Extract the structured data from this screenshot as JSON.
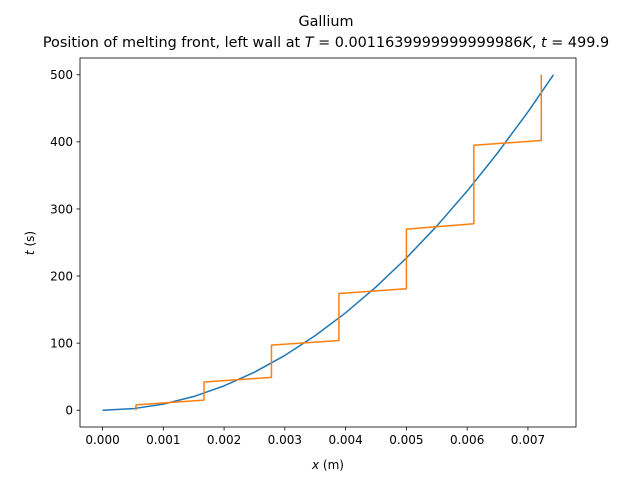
{
  "chart_data": {
    "type": "line",
    "title": "Gallium",
    "subtitle_parts": {
      "prefix": "Position of melting front, left wall at ",
      "T_var": "T",
      "T_value": " = 0.0011639999999999986",
      "T_unit": "K",
      "sep": ", ",
      "t_var": "t",
      "t_value": " = 499.9"
    },
    "xlabel": {
      "var": "x",
      "unit": " (m)"
    },
    "ylabel": {
      "var": "t",
      "unit": " (s)"
    },
    "xlim": [
      -0.000371,
      0.007791
    ],
    "ylim": [
      -25,
      525
    ],
    "xticks": [
      {
        "value": 0.0,
        "label": "0.000"
      },
      {
        "value": 0.001,
        "label": "0.001"
      },
      {
        "value": 0.002,
        "label": "0.002"
      },
      {
        "value": 0.003,
        "label": "0.003"
      },
      {
        "value": 0.004,
        "label": "0.004"
      },
      {
        "value": 0.005,
        "label": "0.005"
      },
      {
        "value": 0.006,
        "label": "0.006"
      },
      {
        "value": 0.007,
        "label": "0.007"
      }
    ],
    "yticks": [
      {
        "value": 0,
        "label": "0"
      },
      {
        "value": 100,
        "label": "100"
      },
      {
        "value": 200,
        "label": "200"
      },
      {
        "value": 300,
        "label": "300"
      },
      {
        "value": 400,
        "label": "400"
      },
      {
        "value": 500,
        "label": "500"
      }
    ],
    "grid": false,
    "series": [
      {
        "color": "#1f77b4",
        "kind": "analytic",
        "x": [
          0.0,
          0.0005,
          0.001,
          0.0015,
          0.002,
          0.0025,
          0.003,
          0.0035,
          0.004,
          0.0045,
          0.005,
          0.0055,
          0.006,
          0.0065,
          0.007,
          0.00742
        ],
        "y": [
          0.0,
          2.3,
          9.1,
          20.4,
          36.3,
          56.7,
          81.7,
          111.2,
          145.2,
          183.8,
          226.9,
          274.5,
          326.7,
          383.4,
          444.6,
          499.9
        ]
      },
      {
        "color": "#ff7f0e",
        "kind": "numerical",
        "x": [
          0.00055,
          0.00055,
          0.00055,
          0.00167,
          0.00167,
          0.00167,
          0.00278,
          0.00278,
          0.00278,
          0.00389,
          0.00389,
          0.00389,
          0.005,
          0.005,
          0.005,
          0.00611,
          0.00611,
          0.00611,
          0.00722,
          0.00722
        ],
        "y": [
          0,
          8,
          8,
          15,
          42,
          42,
          49,
          97,
          97,
          104,
          174,
          174,
          181,
          270,
          270,
          278,
          395,
          395,
          402,
          500
        ]
      }
    ]
  }
}
